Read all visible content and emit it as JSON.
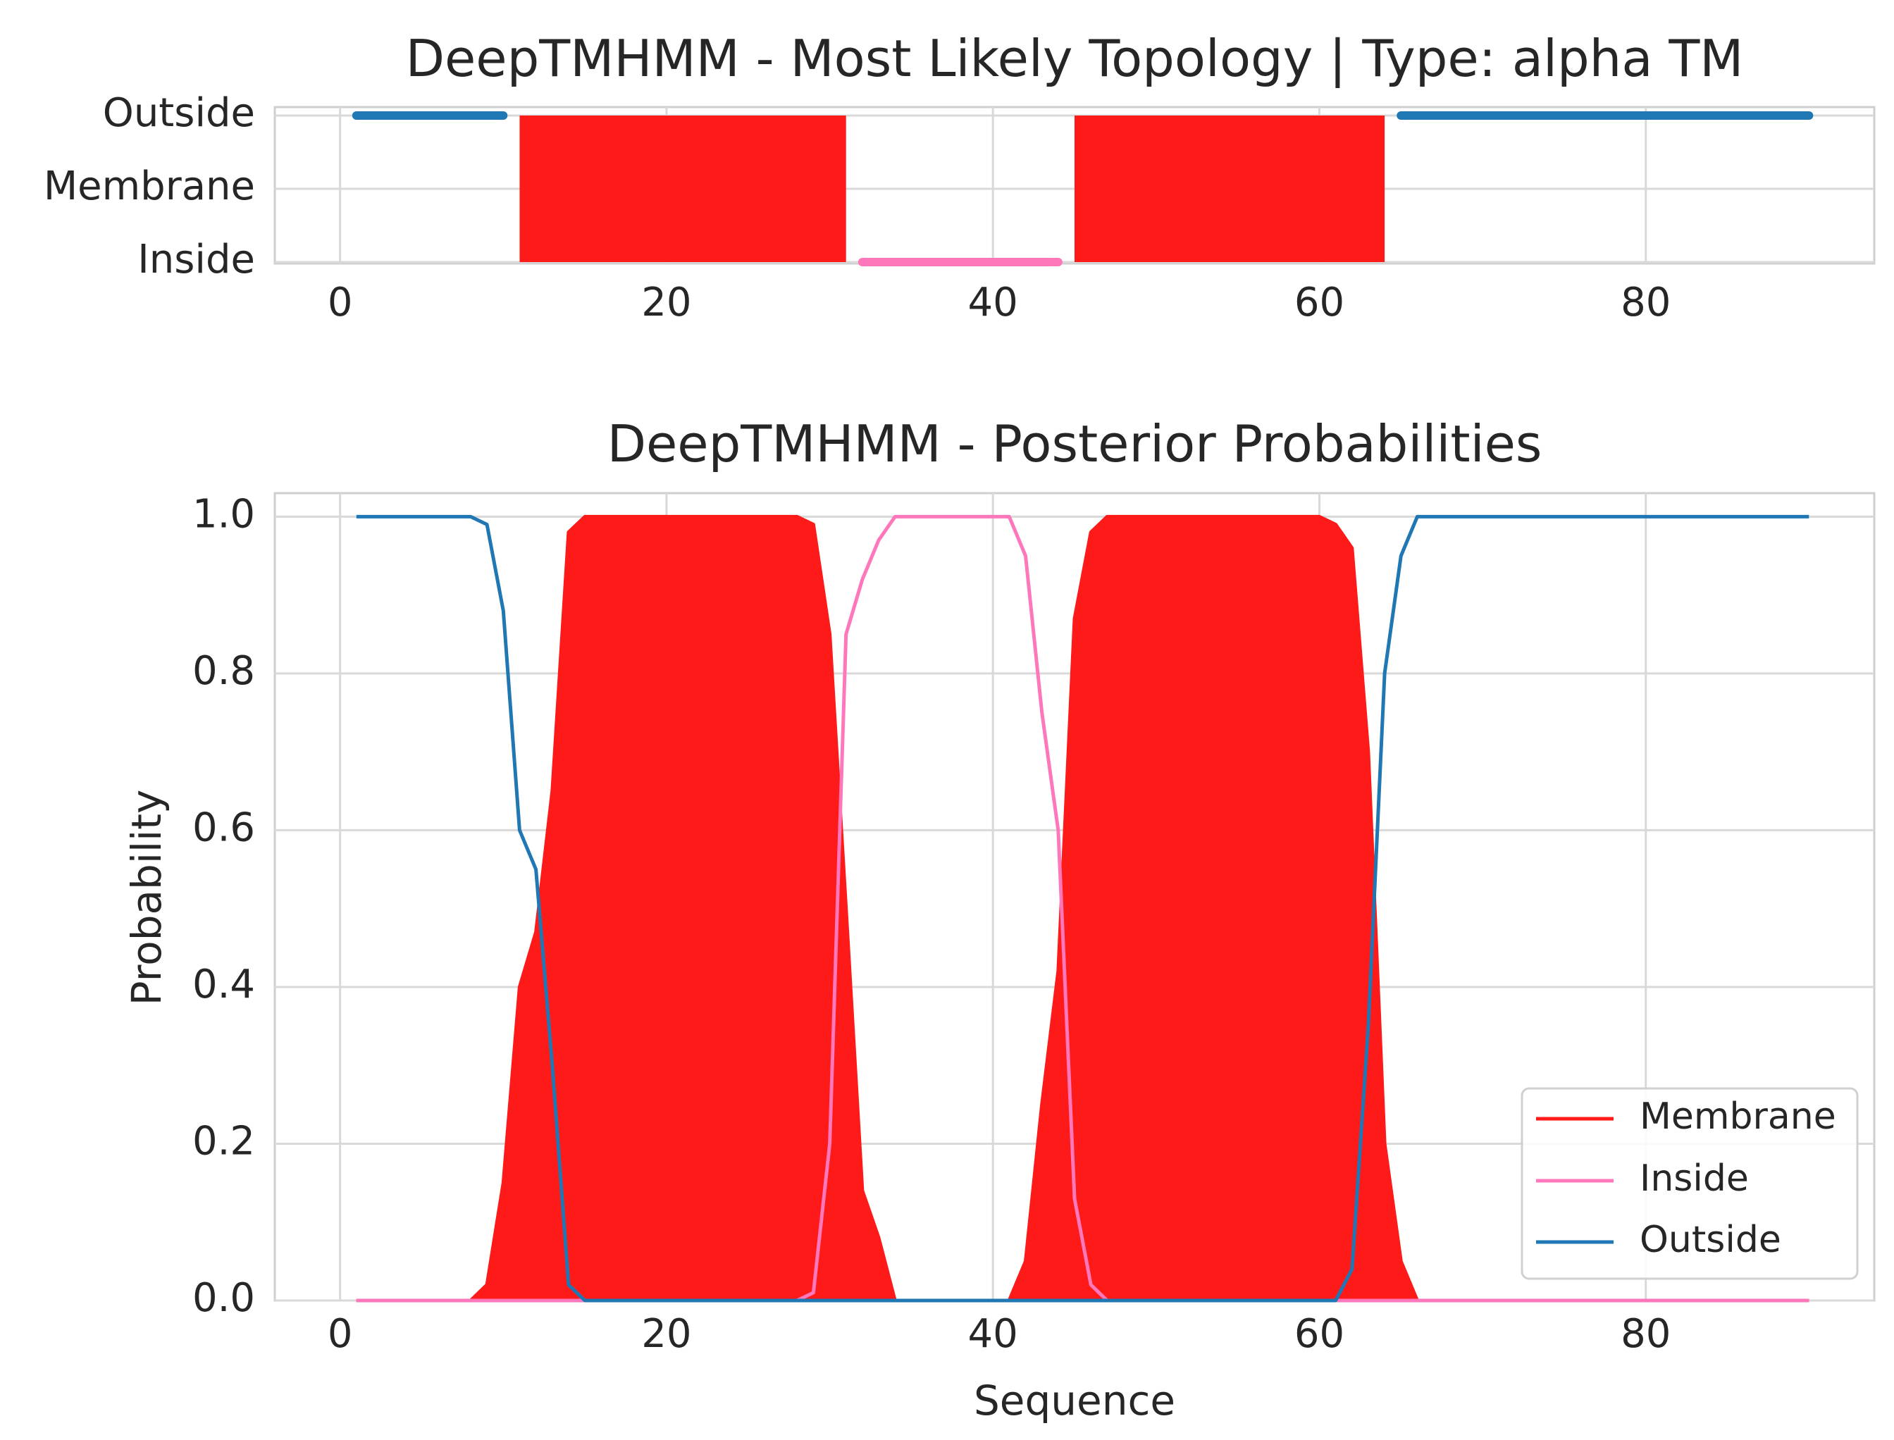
{
  "chart_data": [
    {
      "type": "line",
      "title": "DeepTMHMM - Most Likely Topology | Type: alpha TM",
      "xlabel": "",
      "ylabel": "",
      "xlim": [
        -4,
        94
      ],
      "xticks": [
        0,
        20,
        40,
        60,
        80
      ],
      "ytick_labels": [
        "Outside",
        "Membrane",
        "Inside"
      ],
      "grid": true,
      "segments": [
        {
          "label": "Outside",
          "start": 1,
          "end": 10,
          "color": "#1f77b4"
        },
        {
          "label": "Membrane",
          "start": 11,
          "end": 31,
          "color": "#ff1a1a"
        },
        {
          "label": "Inside",
          "start": 32,
          "end": 44,
          "color": "#ff77bb"
        },
        {
          "label": "Membrane",
          "start": 45,
          "end": 64,
          "color": "#ff1a1a"
        },
        {
          "label": "Outside",
          "start": 65,
          "end": 90,
          "color": "#1f77b4"
        }
      ]
    },
    {
      "type": "line",
      "title": "DeepTMHMM - Posterior Probabilities",
      "xlabel": "Sequence",
      "ylabel": "Probability",
      "xlim": [
        -4,
        94
      ],
      "ylim": [
        0,
        1.03
      ],
      "xticks": [
        0,
        20,
        40,
        60,
        80
      ],
      "yticks": [
        0.0,
        0.2,
        0.4,
        0.6,
        0.8,
        1.0
      ],
      "ytick_labels": [
        "0.0",
        "0.2",
        "0.4",
        "0.6",
        "0.8",
        "1.0"
      ],
      "grid": true,
      "legend_position": "bottom-right",
      "series": [
        {
          "name": "Membrane",
          "color": "#ff1a1a",
          "fill": true,
          "points": [
            [
              1,
              0
            ],
            [
              8,
              0
            ],
            [
              9,
              0.02
            ],
            [
              10,
              0.15
            ],
            [
              11,
              0.4
            ],
            [
              12,
              0.47
            ],
            [
              13,
              0.65
            ],
            [
              14,
              0.98
            ],
            [
              15,
              1
            ],
            [
              27,
              1
            ],
            [
              28,
              1
            ],
            [
              29,
              0.99
            ],
            [
              30,
              0.85
            ],
            [
              31,
              0.5
            ],
            [
              32,
              0.14
            ],
            [
              33,
              0.08
            ],
            [
              34,
              0
            ],
            [
              41,
              0
            ],
            [
              42,
              0.05
            ],
            [
              43,
              0.25
            ],
            [
              44,
              0.42
            ],
            [
              45,
              0.87
            ],
            [
              46,
              0.98
            ],
            [
              47,
              1
            ],
            [
              59,
              1
            ],
            [
              60,
              1
            ],
            [
              61,
              0.99
            ],
            [
              62,
              0.96
            ],
            [
              63,
              0.7
            ],
            [
              64,
              0.2
            ],
            [
              65,
              0.05
            ],
            [
              66,
              0
            ],
            [
              90,
              0
            ]
          ]
        },
        {
          "name": "Inside",
          "color": "#ff77bb",
          "fill": false,
          "points": [
            [
              1,
              0
            ],
            [
              28,
              0
            ],
            [
              29,
              0.01
            ],
            [
              30,
              0.2
            ],
            [
              31,
              0.85
            ],
            [
              32,
              0.92
            ],
            [
              33,
              0.97
            ],
            [
              34,
              1
            ],
            [
              41,
              1
            ],
            [
              42,
              0.95
            ],
            [
              43,
              0.75
            ],
            [
              44,
              0.6
            ],
            [
              45,
              0.13
            ],
            [
              46,
              0.02
            ],
            [
              47,
              0
            ],
            [
              90,
              0
            ]
          ]
        },
        {
          "name": "Outside",
          "color": "#1f77b4",
          "fill": false,
          "points": [
            [
              1,
              1
            ],
            [
              8,
              1
            ],
            [
              9,
              0.99
            ],
            [
              10,
              0.88
            ],
            [
              11,
              0.6
            ],
            [
              12,
              0.55
            ],
            [
              13,
              0.3
            ],
            [
              14,
              0.02
            ],
            [
              15,
              0
            ],
            [
              60,
              0
            ],
            [
              61,
              0
            ],
            [
              62,
              0.04
            ],
            [
              63,
              0.35
            ],
            [
              64,
              0.8
            ],
            [
              65,
              0.95
            ],
            [
              66,
              1
            ],
            [
              90,
              1
            ]
          ]
        }
      ]
    }
  ]
}
